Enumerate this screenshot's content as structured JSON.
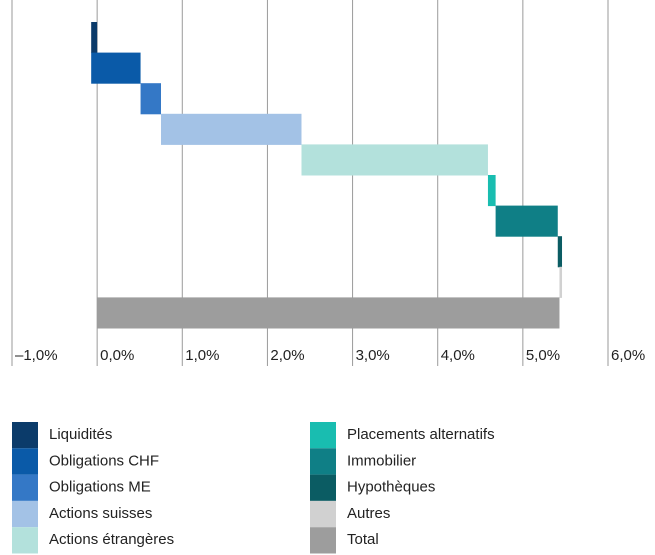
{
  "chart_data": {
    "type": "waterfall",
    "categories": [
      "Liquidités",
      "Obligations CHF",
      "Obligations ME",
      "Actions suisses",
      "Actions étrangères",
      "Placements alternatifs",
      "Immobilier",
      "Hypothèques",
      "Autres",
      "Total"
    ],
    "values": [
      -0.07,
      0.58,
      0.24,
      1.65,
      2.19,
      0.09,
      0.73,
      0.05,
      -0.03,
      5.43
    ],
    "colors": [
      "#0b3b6a",
      "#0a5aa8",
      "#3478c6",
      "#a3c2e6",
      "#b3e1dc",
      "#19bdb0",
      "#0f7f86",
      "#0b5c63",
      "#d1d1d1",
      "#9d9d9d"
    ],
    "xlim": [
      -1.0,
      6.0
    ],
    "xticks": [
      {
        "value": -1.0,
        "label": "–1,0%"
      },
      {
        "value": 0.0,
        "label": "0,0%"
      },
      {
        "value": 1.0,
        "label": "1,0%"
      },
      {
        "value": 2.0,
        "label": "2,0%"
      },
      {
        "value": 3.0,
        "label": "3,0%"
      },
      {
        "value": 4.0,
        "label": "4,0%"
      },
      {
        "value": 5.0,
        "label": "5,0%"
      },
      {
        "value": 6.0,
        "label": "6,0%"
      }
    ],
    "grid": true
  }
}
